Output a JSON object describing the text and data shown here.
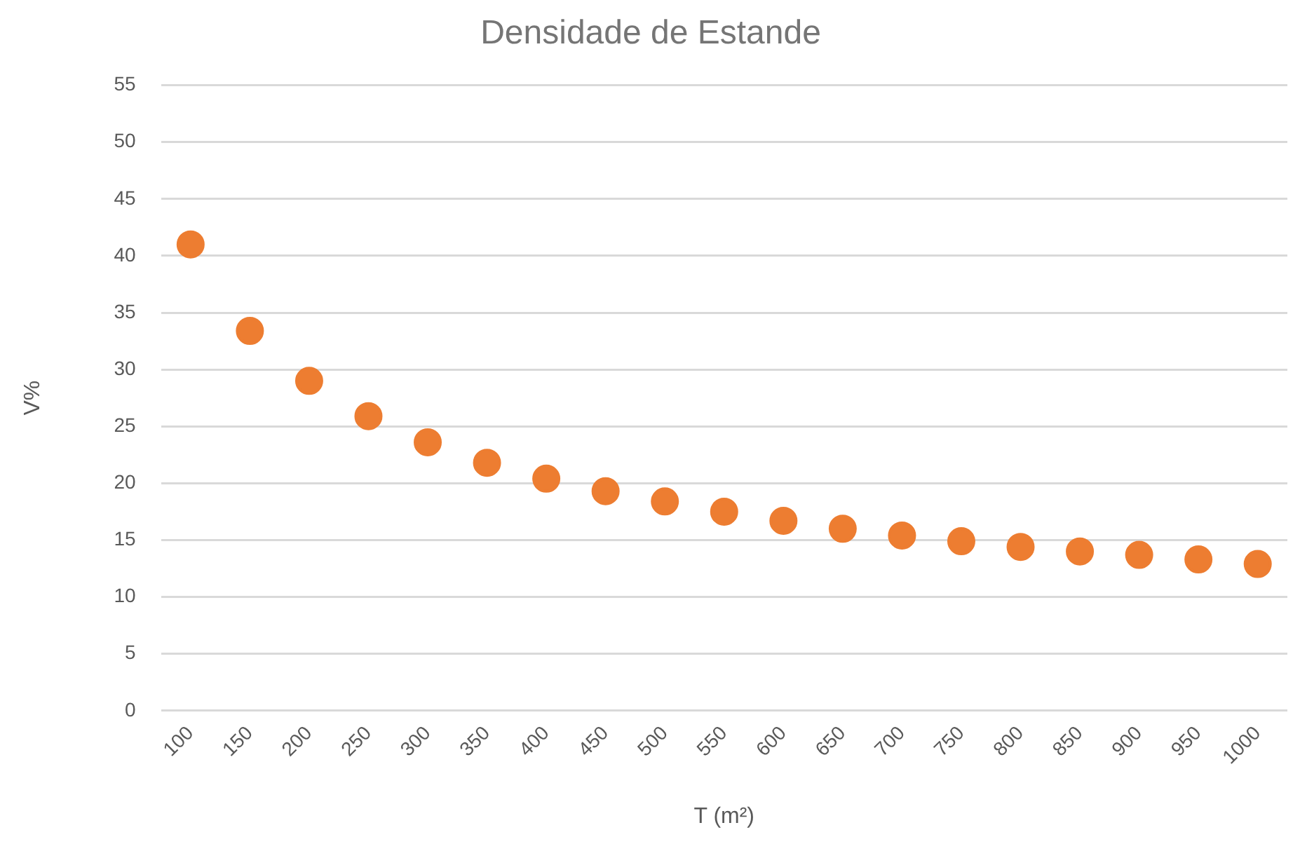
{
  "chart_data": {
    "type": "scatter",
    "title": "Densidade de Estande",
    "xlabel": "T (m²)",
    "ylabel": "V%",
    "categories": [
      "100",
      "150",
      "200",
      "250",
      "300",
      "350",
      "400",
      "450",
      "500",
      "550",
      "600",
      "650",
      "700",
      "750",
      "800",
      "850",
      "900",
      "950",
      "1000"
    ],
    "series": [
      {
        "color": "#ed7d31",
        "values": [
          41,
          33.4,
          29,
          25.9,
          23.6,
          21.8,
          20.4,
          19.3,
          18.4,
          17.5,
          16.7,
          16,
          15.4,
          14.9,
          14.4,
          14,
          13.7,
          13.3,
          12.9
        ]
      }
    ],
    "ylim": [
      0,
      55
    ],
    "yticks": [
      0,
      5,
      10,
      15,
      20,
      25,
      30,
      35,
      40,
      45,
      50,
      55
    ],
    "grid": "y",
    "legend": false,
    "marker": "circle"
  }
}
